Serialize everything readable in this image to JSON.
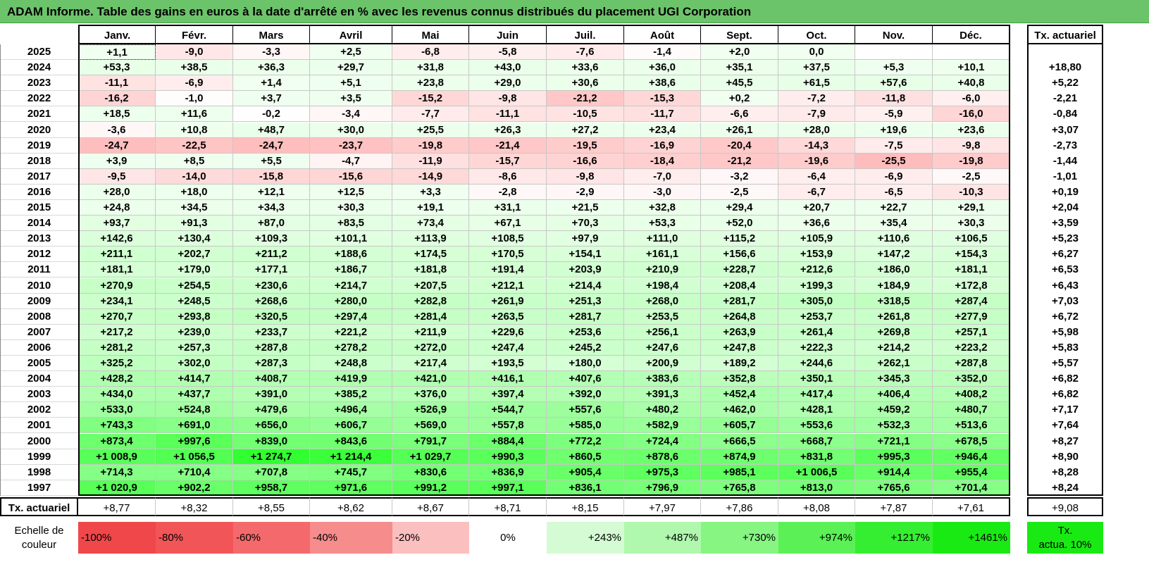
{
  "title": "ADAM Informe. Table des gains en euros à la date d'arrêté en % avec les revenus connus distribués du placement UGI Corporation",
  "months": [
    "Janv.",
    "Févr.",
    "Mars",
    "Avril",
    "Mai",
    "Juin",
    "Juil.",
    "Août",
    "Sept.",
    "Oct.",
    "Nov.",
    "Déc."
  ],
  "rate_header": "Tx. actuariel",
  "rows": [
    {
      "year": "2025",
      "values": [
        "+1,1",
        "-9,0",
        "-3,3",
        "+2,5",
        "-6,8",
        "-5,8",
        "-7,6",
        "-1,4",
        "+2,0",
        "0,0",
        "",
        ""
      ],
      "rate": ""
    },
    {
      "year": "2024",
      "values": [
        "+53,3",
        "+38,5",
        "+36,3",
        "+29,7",
        "+31,8",
        "+43,0",
        "+33,6",
        "+36,0",
        "+35,1",
        "+37,5",
        "+5,3",
        "+10,1"
      ],
      "rate": "+18,80"
    },
    {
      "year": "2023",
      "values": [
        "-11,1",
        "-6,9",
        "+1,4",
        "+5,1",
        "+23,8",
        "+29,0",
        "+30,6",
        "+38,6",
        "+45,5",
        "+61,5",
        "+57,6",
        "+40,8"
      ],
      "rate": "+5,22"
    },
    {
      "year": "2022",
      "values": [
        "-16,2",
        "-1,0",
        "+3,7",
        "+3,5",
        "-15,2",
        "-9,8",
        "-21,2",
        "-15,3",
        "+0,2",
        "-7,2",
        "-11,8",
        "-6,0"
      ],
      "rate": "-2,21"
    },
    {
      "year": "2021",
      "values": [
        "+18,5",
        "+11,6",
        "-0,2",
        "-3,4",
        "-7,7",
        "-11,1",
        "-10,5",
        "-11,7",
        "-6,6",
        "-7,9",
        "-5,9",
        "-16,0"
      ],
      "rate": "-0,84"
    },
    {
      "year": "2020",
      "values": [
        "-3,6",
        "+10,8",
        "+48,7",
        "+30,0",
        "+25,5",
        "+26,3",
        "+27,2",
        "+23,4",
        "+26,1",
        "+28,0",
        "+19,6",
        "+23,6"
      ],
      "rate": "+3,07"
    },
    {
      "year": "2019",
      "values": [
        "-24,7",
        "-22,5",
        "-24,7",
        "-23,7",
        "-19,8",
        "-21,4",
        "-19,5",
        "-16,9",
        "-20,4",
        "-14,3",
        "-7,5",
        "-9,8"
      ],
      "rate": "-2,73"
    },
    {
      "year": "2018",
      "values": [
        "+3,9",
        "+8,5",
        "+5,5",
        "-4,7",
        "-11,9",
        "-15,7",
        "-16,6",
        "-18,4",
        "-21,2",
        "-19,6",
        "-25,5",
        "-19,8"
      ],
      "rate": "-1,44"
    },
    {
      "year": "2017",
      "values": [
        "-9,5",
        "-14,0",
        "-15,8",
        "-15,6",
        "-14,9",
        "-8,6",
        "-9,8",
        "-7,0",
        "-3,2",
        "-6,4",
        "-6,9",
        "-2,5"
      ],
      "rate": "-1,01"
    },
    {
      "year": "2016",
      "values": [
        "+28,0",
        "+18,0",
        "+12,1",
        "+12,5",
        "+3,3",
        "-2,8",
        "-2,9",
        "-3,0",
        "-2,5",
        "-6,7",
        "-6,5",
        "-10,3"
      ],
      "rate": "+0,19"
    },
    {
      "year": "2015",
      "values": [
        "+24,8",
        "+34,5",
        "+34,3",
        "+30,3",
        "+19,1",
        "+31,1",
        "+21,5",
        "+32,8",
        "+29,4",
        "+20,7",
        "+22,7",
        "+29,1"
      ],
      "rate": "+2,04"
    },
    {
      "year": "2014",
      "values": [
        "+93,7",
        "+91,3",
        "+87,0",
        "+83,5",
        "+73,4",
        "+67,1",
        "+70,3",
        "+53,3",
        "+52,0",
        "+36,6",
        "+35,4",
        "+30,3"
      ],
      "rate": "+3,59"
    },
    {
      "year": "2013",
      "values": [
        "+142,6",
        "+130,4",
        "+109,3",
        "+101,1",
        "+113,9",
        "+108,5",
        "+97,9",
        "+111,0",
        "+115,2",
        "+105,9",
        "+110,6",
        "+106,5"
      ],
      "rate": "+5,23"
    },
    {
      "year": "2012",
      "values": [
        "+211,1",
        "+202,7",
        "+211,2",
        "+188,6",
        "+174,5",
        "+170,5",
        "+154,1",
        "+161,1",
        "+156,6",
        "+153,9",
        "+147,2",
        "+154,3"
      ],
      "rate": "+6,27"
    },
    {
      "year": "2011",
      "values": [
        "+181,1",
        "+179,0",
        "+177,1",
        "+186,7",
        "+181,8",
        "+191,4",
        "+203,9",
        "+210,9",
        "+228,7",
        "+212,6",
        "+186,0",
        "+181,1"
      ],
      "rate": "+6,53"
    },
    {
      "year": "2010",
      "values": [
        "+270,9",
        "+254,5",
        "+230,6",
        "+214,7",
        "+207,5",
        "+212,1",
        "+214,4",
        "+198,4",
        "+208,4",
        "+199,3",
        "+184,9",
        "+172,8"
      ],
      "rate": "+6,43"
    },
    {
      "year": "2009",
      "values": [
        "+234,1",
        "+248,5",
        "+268,6",
        "+280,0",
        "+282,8",
        "+261,9",
        "+251,3",
        "+268,0",
        "+281,7",
        "+305,0",
        "+318,5",
        "+287,4"
      ],
      "rate": "+7,03"
    },
    {
      "year": "2008",
      "values": [
        "+270,7",
        "+293,8",
        "+320,5",
        "+297,4",
        "+281,4",
        "+263,5",
        "+281,7",
        "+253,5",
        "+264,8",
        "+253,7",
        "+261,8",
        "+277,9"
      ],
      "rate": "+6,72"
    },
    {
      "year": "2007",
      "values": [
        "+217,2",
        "+239,0",
        "+233,7",
        "+221,2",
        "+211,9",
        "+229,6",
        "+253,6",
        "+256,1",
        "+263,9",
        "+261,4",
        "+269,8",
        "+257,1"
      ],
      "rate": "+5,98"
    },
    {
      "year": "2006",
      "values": [
        "+281,2",
        "+257,3",
        "+287,8",
        "+278,2",
        "+272,0",
        "+247,4",
        "+245,2",
        "+247,6",
        "+247,8",
        "+222,3",
        "+214,2",
        "+223,2"
      ],
      "rate": "+5,83"
    },
    {
      "year": "2005",
      "values": [
        "+325,2",
        "+302,0",
        "+287,3",
        "+248,8",
        "+217,4",
        "+193,5",
        "+180,0",
        "+200,9",
        "+189,2",
        "+244,6",
        "+262,1",
        "+287,8"
      ],
      "rate": "+5,57"
    },
    {
      "year": "2004",
      "values": [
        "+428,2",
        "+414,7",
        "+408,7",
        "+419,9",
        "+421,0",
        "+416,1",
        "+407,6",
        "+383,6",
        "+352,8",
        "+350,1",
        "+345,3",
        "+352,0"
      ],
      "rate": "+6,82"
    },
    {
      "year": "2003",
      "values": [
        "+434,0",
        "+437,7",
        "+391,0",
        "+385,2",
        "+376,0",
        "+397,4",
        "+392,0",
        "+391,3",
        "+452,4",
        "+417,4",
        "+406,4",
        "+408,2"
      ],
      "rate": "+6,82"
    },
    {
      "year": "2002",
      "values": [
        "+533,0",
        "+524,8",
        "+479,6",
        "+496,4",
        "+526,9",
        "+544,7",
        "+557,6",
        "+480,2",
        "+462,0",
        "+428,1",
        "+459,2",
        "+480,7"
      ],
      "rate": "+7,17"
    },
    {
      "year": "2001",
      "values": [
        "+743,3",
        "+691,0",
        "+656,0",
        "+606,7",
        "+569,0",
        "+557,8",
        "+585,0",
        "+582,9",
        "+605,7",
        "+553,6",
        "+532,3",
        "+513,6"
      ],
      "rate": "+7,64"
    },
    {
      "year": "2000",
      "values": [
        "+873,4",
        "+997,6",
        "+839,0",
        "+843,6",
        "+791,7",
        "+884,4",
        "+772,2",
        "+724,4",
        "+666,5",
        "+668,7",
        "+721,1",
        "+678,5"
      ],
      "rate": "+8,27"
    },
    {
      "year": "1999",
      "values": [
        "+1 008,9",
        "+1 056,5",
        "+1 274,7",
        "+1 214,4",
        "+1 029,7",
        "+990,3",
        "+860,5",
        "+878,6",
        "+874,9",
        "+831,8",
        "+995,3",
        "+946,4"
      ],
      "rate": "+8,90"
    },
    {
      "year": "1998",
      "values": [
        "+714,3",
        "+710,4",
        "+707,8",
        "+745,7",
        "+830,6",
        "+836,9",
        "+905,4",
        "+975,3",
        "+985,1",
        "+1 006,5",
        "+914,4",
        "+955,4"
      ],
      "rate": "+8,28"
    },
    {
      "year": "1997",
      "values": [
        "+1 020,9",
        "+902,2",
        "+958,7",
        "+971,6",
        "+991,2",
        "+997,1",
        "+836,1",
        "+796,9",
        "+765,8",
        "+813,0",
        "+765,6",
        "+701,4"
      ],
      "rate": "+8,24"
    }
  ],
  "footer": {
    "label": "Tx. actuariel",
    "values": [
      "+8,77",
      "+8,32",
      "+8,55",
      "+8,62",
      "+8,67",
      "+8,71",
      "+8,15",
      "+7,97",
      "+7,86",
      "+8,08",
      "+7,87",
      "+7,61"
    ],
    "rate": "+9,08"
  },
  "scale": {
    "label_line1": "Echelle de",
    "label_line2": "couleur",
    "items": [
      {
        "text": "-100%",
        "color": "#f0474a"
      },
      {
        "text": "-80%",
        "color": "#f25558"
      },
      {
        "text": "-60%",
        "color": "#f46a6c"
      },
      {
        "text": "-40%",
        "color": "#f78c8d"
      },
      {
        "text": "-20%",
        "color": "#fbbfbf"
      },
      {
        "text": "0%",
        "color": "#ffffff"
      },
      {
        "text": "+243%",
        "color": "#d4fbd3"
      },
      {
        "text": "+487%",
        "color": "#b0f8ae"
      },
      {
        "text": "+730%",
        "color": "#86f582"
      },
      {
        "text": "+974%",
        "color": "#5bf156"
      },
      {
        "text": "+1217%",
        "color": "#36ee31"
      },
      {
        "text": "+1461%",
        "color": "#19ea13"
      }
    ],
    "legend_line1": "Tx.",
    "legend_line2": "actua. 10%",
    "legend_color": "#19ea13"
  },
  "colors": {
    "title_bg": "#6cc46a",
    "negative": "#f0474a",
    "positive": "#19ea13"
  }
}
